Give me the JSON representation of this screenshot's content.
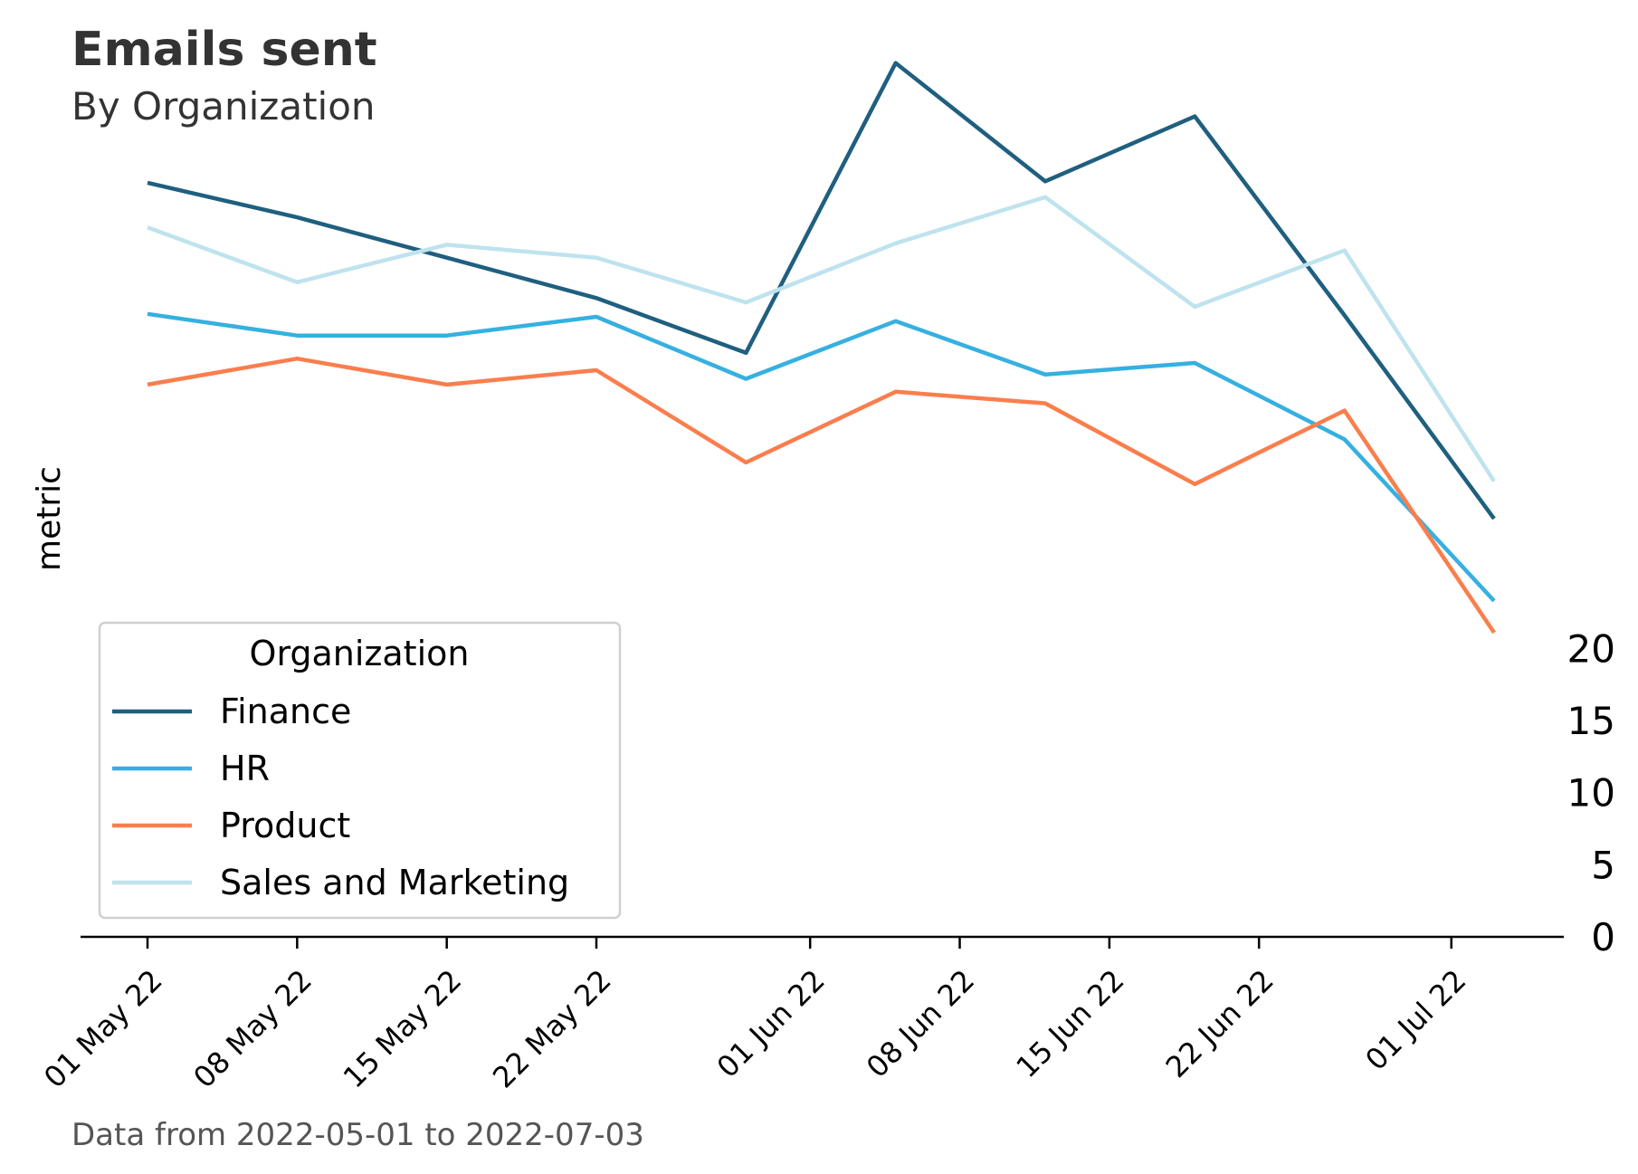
{
  "chart_data": {
    "type": "line",
    "title": "Emails sent",
    "subtitle": "By Organization",
    "caption": "Data from 2022-05-01 to 2022-07-03",
    "ylabel": "metric",
    "xlabel": "",
    "ylim": [
      0,
      20
    ],
    "yticks": [
      "0",
      "5",
      "10",
      "15",
      "20"
    ],
    "y_axis_side": "right",
    "x": [
      "2022-05-01",
      "2022-05-08",
      "2022-05-15",
      "2022-05-22",
      "2022-05-29",
      "2022-06-05",
      "2022-06-12",
      "2022-06-19",
      "2022-06-26",
      "2022-07-03"
    ],
    "xticks": [
      {
        "date": "2022-05-01",
        "label": "01 May 22"
      },
      {
        "date": "2022-05-08",
        "label": "08 May 22"
      },
      {
        "date": "2022-05-15",
        "label": "15 May 22"
      },
      {
        "date": "2022-05-22",
        "label": "22 May 22"
      },
      {
        "date": "2022-06-01",
        "label": "01 Jun 22"
      },
      {
        "date": "2022-06-08",
        "label": "08 Jun 22"
      },
      {
        "date": "2022-06-15",
        "label": "15 Jun 22"
      },
      {
        "date": "2022-06-22",
        "label": "22 Jun 22"
      },
      {
        "date": "2022-07-01",
        "label": "01 Jul 22"
      }
    ],
    "legend_title": "Organization",
    "legend_position": "lower-left",
    "grid": false,
    "series": [
      {
        "name": "Finance",
        "color": "#1f5f7f",
        "values": [
          52.3,
          49.9,
          47.1,
          44.3,
          40.5,
          60.6,
          52.4,
          56.9,
          43.1,
          29.0
        ]
      },
      {
        "name": "HR",
        "color": "#36b0e0",
        "values": [
          43.2,
          41.7,
          41.7,
          43.0,
          38.7,
          42.7,
          39.0,
          39.8,
          34.5,
          23.3
        ]
      },
      {
        "name": "Product",
        "color": "#fa7e4d",
        "values": [
          38.3,
          40.1,
          38.3,
          39.3,
          32.9,
          37.8,
          37.0,
          31.4,
          36.5,
          21.1
        ]
      },
      {
        "name": "Sales and Marketing",
        "color": "#bfe3ee",
        "values": [
          49.2,
          45.4,
          48.0,
          47.1,
          44.0,
          48.1,
          51.3,
          43.7,
          47.6,
          31.6
        ]
      }
    ]
  }
}
